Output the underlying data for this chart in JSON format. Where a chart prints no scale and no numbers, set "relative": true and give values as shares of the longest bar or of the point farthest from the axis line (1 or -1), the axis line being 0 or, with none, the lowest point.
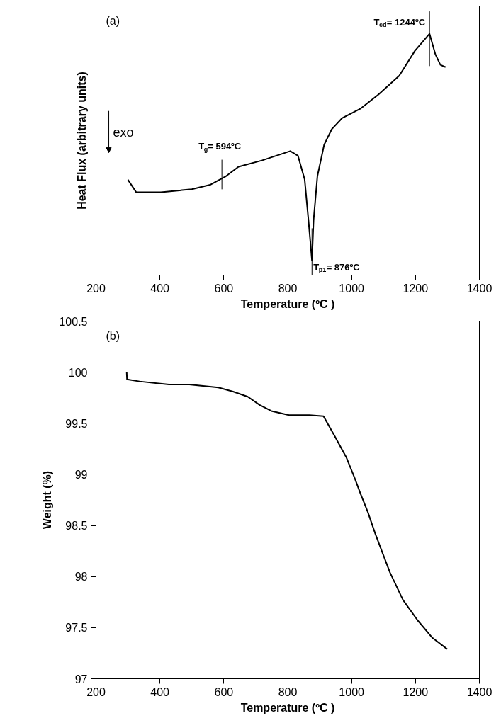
{
  "chart_data": [
    {
      "type": "line",
      "xlabel": "Temperature (ºC )",
      "ylabel": "Heat Flux (arbitrary units)",
      "relative": true,
      "xlim": [
        200,
        1400
      ],
      "xticks": [
        200,
        400,
        600,
        800,
        1000,
        1200,
        1400
      ],
      "tick_labels": "x",
      "grid": false,
      "x": [
        300,
        326,
        403,
        500,
        557,
        607,
        646,
        719,
        808,
        832,
        853,
        865,
        876,
        881,
        893,
        914,
        938,
        970,
        1027,
        1084,
        1149,
        1198,
        1244,
        1262,
        1278,
        1294
      ],
      "series": [
        {
          "color": "#000000",
          "values": [
            0.395,
            0.343,
            0.343,
            0.356,
            0.374,
            0.41,
            0.449,
            0.475,
            0.514,
            0.495,
            0.397,
            0.228,
            0.06,
            0.228,
            0.41,
            0.54,
            0.605,
            0.65,
            0.689,
            0.748,
            0.826,
            0.929,
            1.0,
            0.916,
            0.871,
            0.862
          ]
        }
      ],
      "annotations": [
        "(a)",
        "exo",
        {
          "text": "T$_{g}$= 594ºC",
          "x": 594,
          "y": 0.4
        },
        {
          "text": "T$_{p1}$= 876ºC",
          "x": 876,
          "y": 0.06
        },
        {
          "text": "T$_{cd}$= 1244ºC",
          "x": 1244,
          "y": 1.0
        }
      ]
    },
    {
      "type": "line",
      "xlabel": "Temperature (ºC )",
      "ylabel": "Weight (%)",
      "xlim": [
        200,
        1400
      ],
      "xticks": [
        200,
        400,
        600,
        800,
        1000,
        1200,
        1400
      ],
      "ylim": [
        97,
        100.5
      ],
      "yticks": [
        97,
        97.5,
        98,
        98.5,
        99,
        99.5,
        100,
        100.5
      ],
      "grid": false,
      "x": [
        296,
        297,
        336,
        428,
        492,
        583,
        629,
        675,
        712,
        749,
        804,
        868,
        912,
        946,
        983,
        1010,
        1028,
        1051,
        1074,
        1097,
        1120,
        1161,
        1207,
        1253,
        1299
      ],
      "series": [
        {
          "color": "#000000",
          "values": [
            100.0,
            99.93,
            99.91,
            99.88,
            99.88,
            99.85,
            99.81,
            99.76,
            99.68,
            99.62,
            99.58,
            99.58,
            99.57,
            99.38,
            99.17,
            98.96,
            98.81,
            98.63,
            98.42,
            98.23,
            98.04,
            97.77,
            97.57,
            97.4,
            97.29
          ]
        }
      ],
      "annotations": [
        "(b)"
      ]
    }
  ]
}
